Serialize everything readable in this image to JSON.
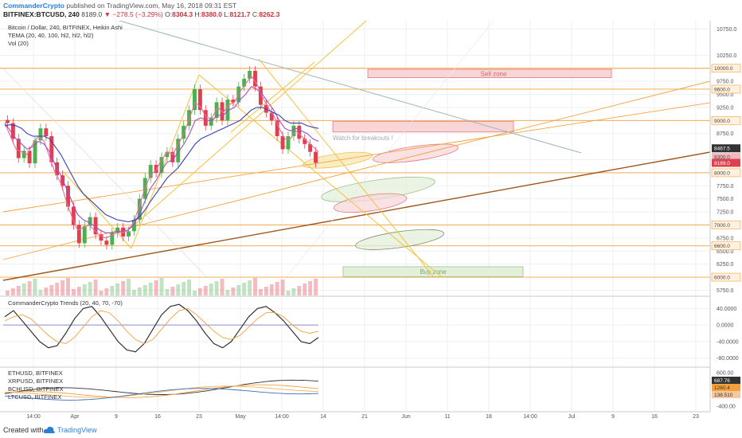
{
  "header": {
    "author": "CommanderCrypto",
    "published": "published on TradingView.com, May 16, 2018 09:31 EST",
    "symbol": "BITFINEX:BTCUSD, 240",
    "last": "8189.0",
    "change": "−278.5 (−3.29%)",
    "o_label": "O:",
    "o_value": "8304.3",
    "h_label": "H:",
    "h_value": "8380.0",
    "l_label": "L:",
    "l_value": "8121.7",
    "c_label": "C:",
    "c_value": "8262.3"
  },
  "footer": {
    "created_with": "Created with",
    "brand": "TradingView"
  },
  "colors": {
    "up": "#4caf50",
    "down": "#e0404e",
    "guide_orange": "#f4a13c",
    "yellow_line": "#f5c23c",
    "brown_line": "#a0561a",
    "tema_blue": "#3d3db8",
    "tema_purple": "#a34fc4",
    "tema_pink": "#f06aa0",
    "sell_fill": "#f8d6d8",
    "buy_fill": "#e2efd9",
    "grey_line": "#9fb5b8"
  },
  "chart_data": [
    {
      "type": "line",
      "panel": "main",
      "legend": [
        "Bitcoin / Dollar, 240, BITFINEX, Heikin Ashi",
        "TEMA (20, 40, 100, hl2, hl2, hl2)",
        "Vol (20)"
      ],
      "xlabel": "",
      "ylabel": "",
      "x_ticks": [
        "14:00",
        "Apr",
        "9",
        "16",
        "23",
        "May",
        "14:00",
        "14",
        "21",
        "Jun",
        "11",
        "18",
        "14:00",
        "Jul",
        "9",
        "16",
        "23"
      ],
      "y_ticks": [
        "5750.0",
        "6250.0",
        "6500.0",
        "6750.0",
        "7000.0",
        "7250.0",
        "7500.0",
        "7750.0",
        "8000.0",
        "8250.0",
        "8750.0",
        "9000.0",
        "9250.0",
        "9500.0",
        "9750.0",
        "10000.0",
        "10250.0",
        "10750.0"
      ],
      "ylim": [
        5650,
        10850
      ],
      "price_tags": [
        "10000.0",
        "9600.0",
        "9000.0",
        "8467.5",
        "8300.0",
        "8189.0",
        "8000.0",
        "7000.0",
        "6600.0",
        "6000.0"
      ],
      "annotations": [
        "Sell zone",
        "Watch for breakouts !",
        "Buy zone"
      ],
      "series": [
        {
          "name": "BTCUSD",
          "values": [
            8950,
            8650,
            8280,
            8420,
            8180,
            8620,
            8850,
            8700,
            8200,
            7950,
            7750,
            7350,
            7000,
            6650,
            6980,
            7150,
            6820,
            6700,
            6620,
            6850,
            6950,
            6780,
            6880,
            7100,
            7500,
            7900,
            8150,
            8000,
            8300,
            8400,
            8200,
            8650,
            8900,
            9200,
            9600,
            9200,
            8900,
            9050,
            9350,
            9000,
            9400,
            9350,
            9650,
            9800,
            9950,
            9650,
            9300,
            9150,
            9000,
            8700,
            8450,
            8700,
            8900,
            8650,
            8550,
            8400,
            8189
          ]
        },
        {
          "name": "TEMA 20",
          "values": [
            8950,
            8700,
            8450,
            8400,
            8350,
            8550,
            8700,
            8600,
            8300,
            8000,
            7800,
            7450,
            7150,
            6900,
            6950,
            7000,
            6900,
            6800,
            6750,
            6800,
            6850,
            6850,
            6900,
            7050,
            7350,
            7700,
            7950,
            8050,
            8250,
            8400,
            8350,
            8550,
            8750,
            9050,
            9350,
            9250,
            9050,
            9050,
            9250,
            9150,
            9300,
            9350,
            9550,
            9700,
            9850,
            9700,
            9450,
            9250,
            9100,
            8850,
            8650,
            8650,
            8800,
            8700,
            8600,
            8500,
            8400
          ]
        },
        {
          "name": "TEMA 40",
          "values": [
            8950,
            8800,
            8650,
            8550,
            8450,
            8500,
            8600,
            8550,
            8400,
            8150,
            7950,
            7700,
            7450,
            7200,
            7100,
            7050,
            6980,
            6900,
            6850,
            6850,
            6870,
            6880,
            6900,
            7000,
            7200,
            7450,
            7700,
            7850,
            8050,
            8200,
            8250,
            8400,
            8550,
            8750,
            9000,
            9050,
            9000,
            9000,
            9100,
            9100,
            9200,
            9250,
            9400,
            9500,
            9650,
            9600,
            9500,
            9350,
            9200,
            9000,
            8850,
            8800,
            8850,
            8800,
            8750,
            8650,
            8600
          ]
        },
        {
          "name": "TEMA 100",
          "values": [
            8900,
            8920,
            8900,
            8850,
            8750,
            8700,
            8700,
            8700,
            8650,
            8500,
            8350,
            8150,
            7950,
            7750,
            7600,
            7500,
            7400,
            7300,
            7200,
            7150,
            7100,
            7080,
            7060,
            7080,
            7150,
            7280,
            7450,
            7600,
            7750,
            7900,
            8000,
            8100,
            8250,
            8400,
            8550,
            8650,
            8700,
            8750,
            8800,
            8850,
            8900,
            8950,
            9000,
            9100,
            9200,
            9250,
            9250,
            9200,
            9150,
            9100,
            9000,
            8950,
            8950,
            8950,
            8900,
            8870,
            8850
          ]
        }
      ]
    },
    {
      "type": "line",
      "panel": "oscillator",
      "legend": [
        "CommanderCrypto Trends (20, 40, 70, -70)"
      ],
      "xlabel": "",
      "ylabel": "",
      "y_ticks": [
        "40.0000",
        "0.0000",
        "-40.0000",
        "-80.0000"
      ],
      "ylim": [
        -100,
        60
      ],
      "series": [
        {
          "name": "",
          "values": [
            20,
            35,
            10,
            -15,
            -40,
            -55,
            -50,
            -20,
            15,
            40,
            45,
            20,
            -10,
            -40,
            -60,
            -65,
            -45,
            -10,
            25,
            45,
            50,
            35,
            10,
            -20,
            -45,
            -55,
            -40,
            -10,
            20,
            40,
            45,
            30,
            10,
            -15,
            -40,
            -45,
            -30
          ]
        },
        {
          "name": "",
          "values": [
            10,
            20,
            25,
            15,
            -5,
            -25,
            -40,
            -45,
            -30,
            -5,
            20,
            35,
            30,
            10,
            -15,
            -35,
            -45,
            -35,
            -10,
            15,
            35,
            40,
            25,
            5,
            -15,
            -30,
            -35,
            -25,
            -5,
            15,
            30,
            30,
            20,
            0,
            -15,
            -20,
            -15
          ]
        }
      ]
    },
    {
      "type": "line",
      "panel": "comparison",
      "legend": [
        "ETHUSD, BITFINEX",
        "XRPUSD, BITFINEX",
        "BCHUSD, BITFINEX",
        "LTCUSD, BITFINEX"
      ],
      "xlabel": "",
      "ylabel": "",
      "y_ticks": [
        "600.00",
        "-400.00"
      ],
      "price_tags": [
        "687.76",
        "1260.4",
        "138.510"
      ],
      "series": []
    }
  ]
}
